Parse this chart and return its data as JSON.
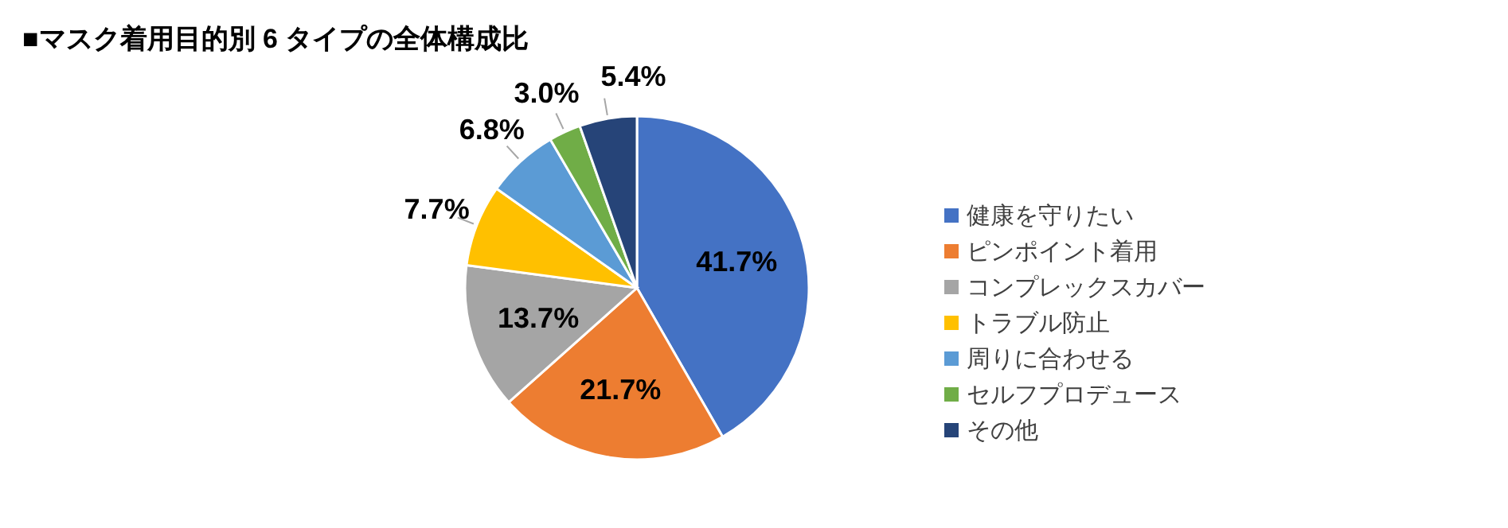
{
  "chart_data": {
    "type": "pie",
    "title": "■マスク着用目的別 6 タイプの全体構成比",
    "categories": [
      "健康を守りたい",
      "ピンポイント着用",
      "コンプレックスカバー",
      "トラブル防止",
      "周りに合わせる",
      "セルフプロデュース",
      "その他"
    ],
    "values": [
      41.7,
      21.7,
      13.7,
      7.7,
      6.8,
      3.0,
      5.4
    ],
    "colors": [
      "#4472c4",
      "#ed7d31",
      "#a5a5a5",
      "#ffc000",
      "#5b9bd5",
      "#70ad47",
      "#264478"
    ],
    "data_labels": true,
    "value_labels": [
      "41.7%",
      "21.7%",
      "13.7%",
      "7.7%",
      "6.8%",
      "3.0%",
      "5.4%"
    ],
    "legend": "right"
  }
}
